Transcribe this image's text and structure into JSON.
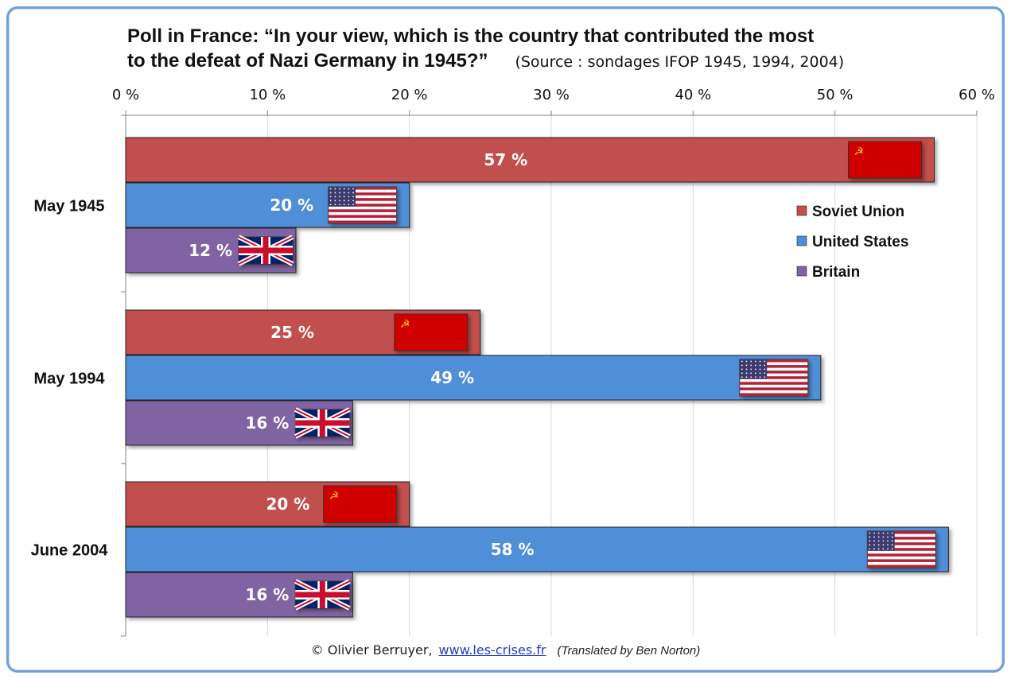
{
  "title_line1": "Poll in France: “In your view, which is the country that contributed the most",
  "title_line2": "to the defeat of Nazi Germany in 1945?”",
  "source": "(Source : sondages IFOP 1945, 1994, 2004)",
  "footer": {
    "author": "© Olivier Berruyer,",
    "link": "www.les-crises.fr",
    "translator": "(Translated by Ben Norton)"
  },
  "chart_data": {
    "type": "bar",
    "orientation": "horizontal",
    "categories": [
      "May 1945",
      "May 1994",
      "June 2004"
    ],
    "series": [
      {
        "name": "Soviet Union",
        "values": [
          57,
          25,
          20
        ],
        "color": "#c0504d",
        "flag": "soviet-flag-icon"
      },
      {
        "name": "United States",
        "values": [
          20,
          49,
          58
        ],
        "color": "#4f8fd8",
        "flag": "us-flag-icon"
      },
      {
        "name": "Britain",
        "values": [
          12,
          16,
          16
        ],
        "color": "#8064a2",
        "flag": "uk-flag-icon"
      }
    ],
    "xlim": [
      0,
      60
    ],
    "xticks": [
      0,
      10,
      20,
      30,
      40,
      50,
      60
    ],
    "tick_suffix": " %",
    "value_suffix": " %",
    "grid": true,
    "legend_position": "right"
  }
}
